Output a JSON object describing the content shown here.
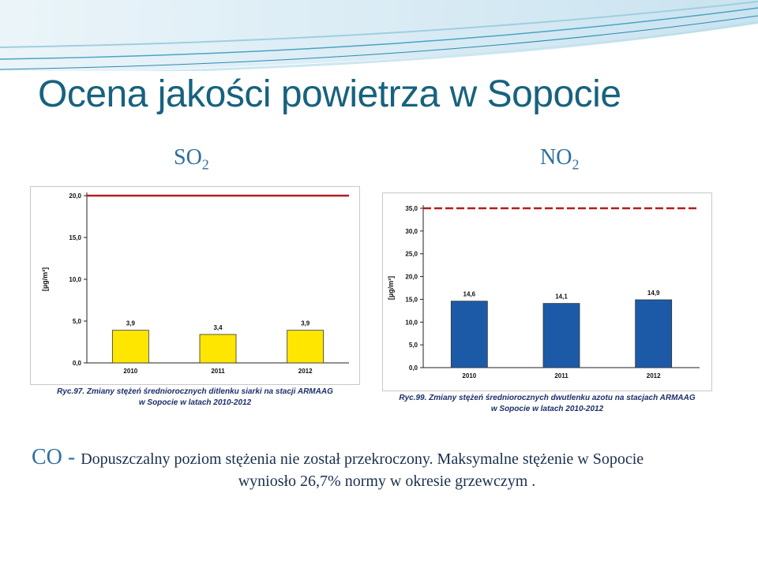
{
  "slide": {
    "title": "Ocena jakości powietrza w Sopocie",
    "label_so2": "SO",
    "label_so2_sub": "2",
    "label_no2": "NO",
    "label_no2_sub": "2",
    "co_title": "CO - ",
    "co_line1": "Dopuszczalny poziom stężenia nie został przekroczony. Maksymalne stężenie w Sopocie",
    "co_line2": "wyniosło 26,7% normy w okresie grzewczym ."
  },
  "chart_data": [
    {
      "type": "bar",
      "categories": [
        "2010",
        "2011",
        "2012"
      ],
      "values": [
        3.9,
        3.4,
        3.9
      ],
      "value_labels": [
        "3,9",
        "3,4",
        "3,9"
      ],
      "ylabel": "[µg/m³]",
      "ylim": [
        0,
        20
      ],
      "yticks": [
        "0,0",
        "5,0",
        "10,0",
        "15,0",
        "20,0"
      ],
      "ytick_values": [
        0,
        5,
        10,
        15,
        20
      ],
      "limit_line": 20,
      "bar_color": "#ffe600",
      "limit_color": "#b21e1e",
      "caption_line1": "Ryc.97. Zmiany stężeń średniorocznych ditlenku siarki na stacji ARMAAG",
      "caption_line2": "w Sopocie w latach 2010-2012",
      "grid": false
    },
    {
      "type": "bar",
      "categories": [
        "2010",
        "2011",
        "2012"
      ],
      "values": [
        14.6,
        14.1,
        14.9
      ],
      "value_labels": [
        "14,6",
        "14,1",
        "14,9"
      ],
      "ylabel": "[µg/m³]",
      "ylim": [
        0,
        35
      ],
      "yticks": [
        "0,0",
        "5,0",
        "10,0",
        "15,0",
        "20,0",
        "25,0",
        "30,0",
        "35,0"
      ],
      "ytick_values": [
        0,
        5,
        10,
        15,
        20,
        25,
        30,
        35
      ],
      "limit_line": 35,
      "bar_color": "#1c5aa8",
      "limit_color": "#b21e1e",
      "caption_line1": "Ryc.99. Zmiany stężeń średniorocznych dwutlenku azotu na stacjach ARMAAG",
      "caption_line2": "w Sopocie w latach 2010-2012",
      "grid": false
    }
  ]
}
